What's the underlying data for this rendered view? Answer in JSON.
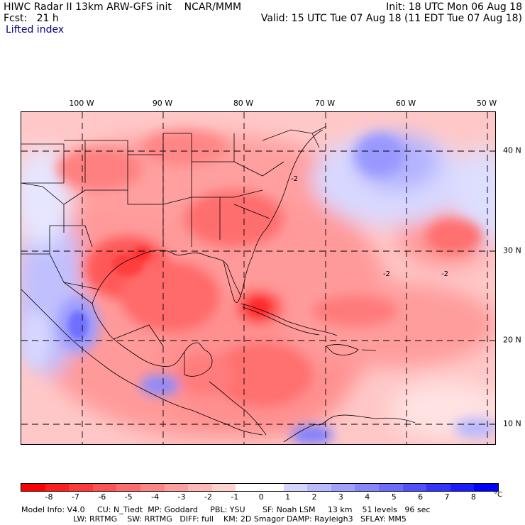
{
  "header": {
    "title": "HIWC Radar II 13km ARW-GFS init    NCAR/MMM",
    "init": "Init: 18 UTC Mon 06 Aug 18",
    "fcst": "Fcst:   21 h",
    "valid": "Valid: 15 UTC Tue 07 Aug 18 (11 EDT Tue 07 Aug 18)",
    "field": "Lifted index"
  },
  "map": {
    "lon_labels": [
      "100 W",
      "90 W",
      "80 W",
      "70 W",
      "60 W",
      "50 W"
    ],
    "lat_labels": [
      "40 N",
      "30 N",
      "20 N",
      "10 N"
    ],
    "contour_labels": [
      "-2",
      "-2",
      "-2"
    ]
  },
  "colorbar": {
    "ticks": [
      "-8",
      "-7",
      "-6",
      "-5",
      "-4",
      "-3",
      "-2",
      "-1",
      "0",
      "1",
      "2",
      "3",
      "4",
      "5",
      "6",
      "7",
      "8"
    ],
    "unit": "°C",
    "colors": [
      "#ff0000",
      "#ff1e1e",
      "#ff3838",
      "#ff5252",
      "#ff6a6a",
      "#ff8484",
      "#ff9e9e",
      "#ffb8b8",
      "#ffd2d2",
      "#ffffff",
      "#ffffff",
      "#d4d4ff",
      "#babaff",
      "#a0a0ff",
      "#8686ff",
      "#6c6cff",
      "#5050ff",
      "#3434ff",
      "#1a1aff",
      "#0000ff"
    ]
  },
  "footer": {
    "line1": "Model Info: V4.0     CU: N_Tiedt  MP: Goddard     PBL: YSU       SF: Noah LSM     13 km    51 levels   96 sec",
    "line2": "                     LW: RRTMG    SW: RRTMG   DIFF: full    KM: 2D Smagor DAMP: Rayleigh3   SFLAY: MM5"
  }
}
